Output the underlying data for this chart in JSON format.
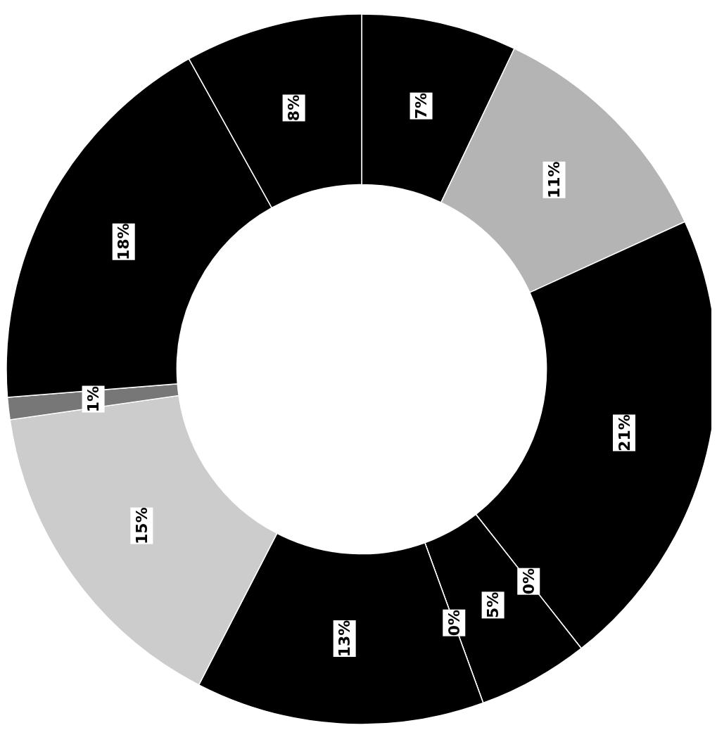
{
  "chart_data": {
    "type": "donut",
    "categories": [
      null,
      null,
      null,
      null,
      null,
      null,
      null,
      null,
      null,
      null,
      null
    ],
    "values": [
      7,
      11,
      21,
      0,
      5,
      0,
      13,
      15,
      1,
      18,
      8
    ],
    "colors": [
      "#000000",
      "#b4b4b4",
      "#000000",
      "#000000",
      "#000000",
      "#999999",
      "#000000",
      "#cccccc",
      "#777777",
      "#000000",
      "#000000"
    ],
    "value_labels": [
      "7%",
      "11%",
      "21%",
      "0%",
      "5%",
      "0%",
      "13%",
      "15%",
      "1%",
      "18%",
      "8%"
    ]
  }
}
